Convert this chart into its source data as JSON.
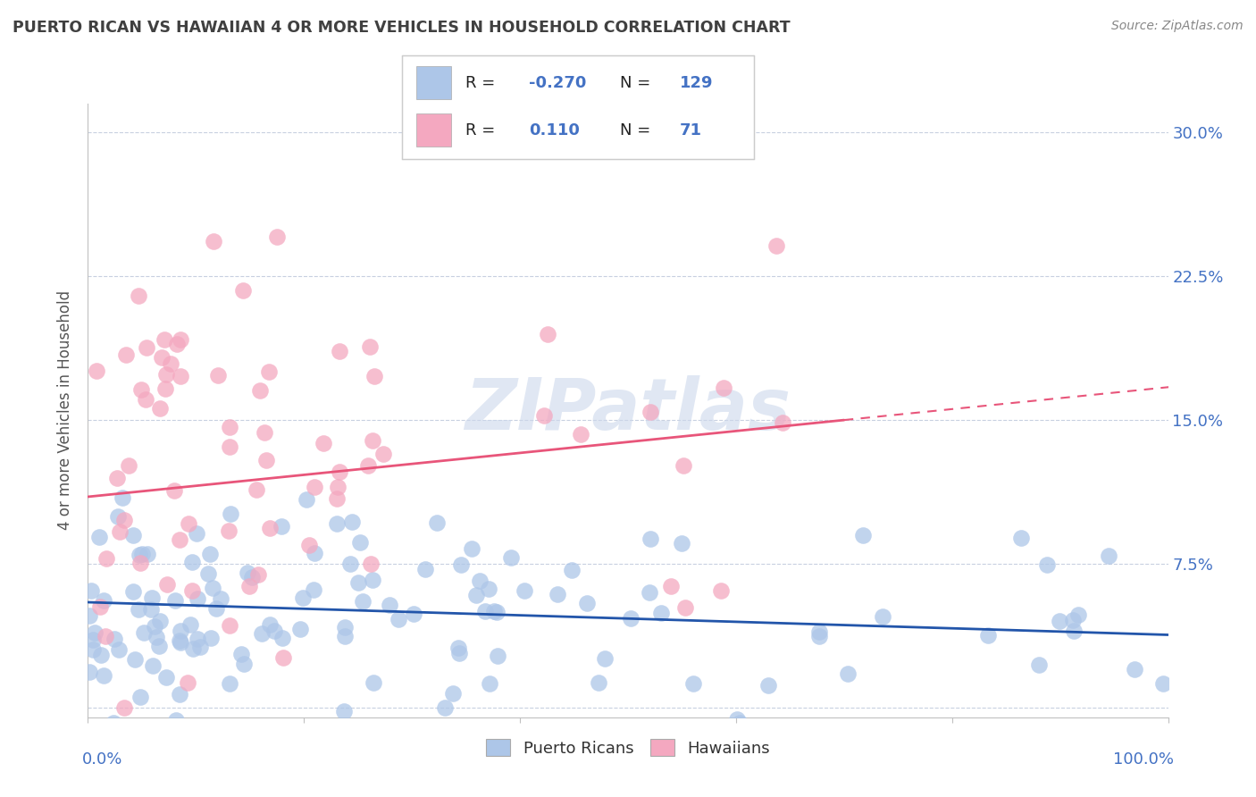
{
  "title": "PUERTO RICAN VS HAWAIIAN 4 OR MORE VEHICLES IN HOUSEHOLD CORRELATION CHART",
  "source": "Source: ZipAtlas.com",
  "ylabel": "4 or more Vehicles in Household",
  "xlim": [
    0.0,
    1.0
  ],
  "ylim": [
    -0.005,
    0.315
  ],
  "blue_R": -0.27,
  "blue_N": 129,
  "pink_R": 0.11,
  "pink_N": 71,
  "blue_color": "#adc6e8",
  "pink_color": "#f4a8c0",
  "blue_line_color": "#2255aa",
  "pink_line_color": "#e8557a",
  "watermark_color": "#ccd8ec",
  "background_color": "#ffffff",
  "grid_color": "#c8d0e0",
  "title_color": "#404040",
  "axis_label_color": "#4472c4",
  "blue_line_start_y": 0.055,
  "blue_line_end_y": 0.038,
  "pink_line_start_y": 0.11,
  "pink_line_end_y": 0.15,
  "pink_line_x_end": 0.7,
  "pink_line_x_dash_end": 1.02
}
